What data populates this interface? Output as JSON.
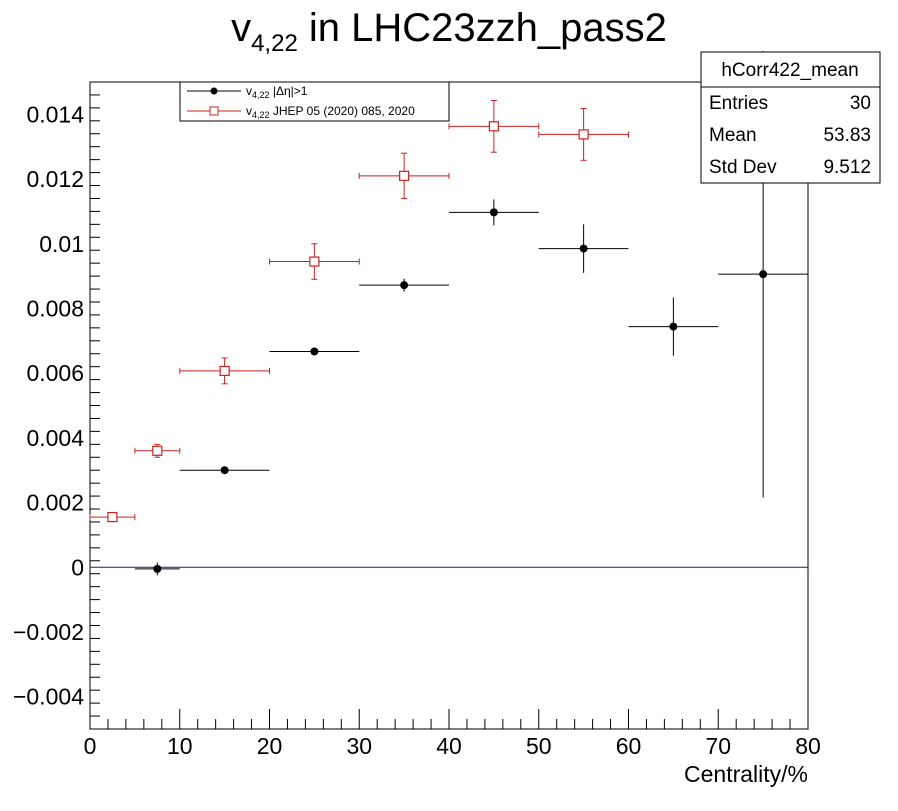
{
  "chart_data": {
    "type": "scatter",
    "title": {
      "symbol": "v",
      "subscript": "4,22",
      "rest": " in LHC23zzh_pass2"
    },
    "xlabel": "Centrality/%",
    "ylabel": "",
    "xlim": [
      0,
      80
    ],
    "ylim": [
      -0.005,
      0.015
    ],
    "x_ticks": [
      "0",
      "10",
      "20",
      "30",
      "40",
      "50",
      "60",
      "70",
      "80"
    ],
    "y_ticks": [
      "−0.004",
      "−0.002",
      "0",
      "0.002",
      "0.004",
      "0.006",
      "0.008",
      "0.01",
      "0.012",
      "0.014"
    ],
    "y_tick_values": [
      -0.004,
      -0.002,
      0,
      0.002,
      0.004,
      0.006,
      0.008,
      0.01,
      0.012,
      0.014
    ],
    "grid": false,
    "zero_line": true,
    "legend": {
      "placement": "top-left",
      "entries": [
        {
          "symbol": "v",
          "subscript": "4,22",
          "rest": " |Δη|>1"
        },
        {
          "symbol": "v",
          "subscript": "4,22",
          "rest": " JHEP 05 (2020) 085, 2020"
        }
      ]
    },
    "stats_box": {
      "name": "hCorr422_mean",
      "rows": [
        {
          "label": "Entries",
          "value": "30"
        },
        {
          "label": "Mean",
          "value": "53.83"
        },
        {
          "label": "Std Dev",
          "value": "9.512"
        }
      ]
    },
    "series": [
      {
        "color": "#000000",
        "marker": "filled-circle",
        "points": [
          {
            "x": 7.5,
            "y": -5e-05,
            "xerr": 2.5,
            "yerr": 0.0002
          },
          {
            "x": 15,
            "y": 0.003,
            "xerr": 5,
            "yerr": 5e-05
          },
          {
            "x": 25,
            "y": 0.00667,
            "xerr": 5,
            "yerr": 0.0001
          },
          {
            "x": 35,
            "y": 0.00872,
            "xerr": 5,
            "yerr": 0.0002
          },
          {
            "x": 45,
            "y": 0.01097,
            "xerr": 5,
            "yerr": 0.0004
          },
          {
            "x": 55,
            "y": 0.00985,
            "xerr": 5,
            "yerr": 0.00075
          },
          {
            "x": 65,
            "y": 0.00744,
            "xerr": 5,
            "yerr": 0.0009
          },
          {
            "x": 75,
            "y": 0.00906,
            "xerr": 5,
            "yerr": 0.0069
          }
        ]
      },
      {
        "color": "#cc2222",
        "marker": "open-square",
        "points": [
          {
            "x": 2.5,
            "y": 0.00155,
            "xerr": 2.5,
            "yerr": 0.0001
          },
          {
            "x": 7.5,
            "y": 0.0036,
            "xerr": 2.5,
            "yerr": 0.0002
          },
          {
            "x": 15,
            "y": 0.00607,
            "xerr": 5,
            "yerr": 0.0004
          },
          {
            "x": 25,
            "y": 0.00945,
            "xerr": 5,
            "yerr": 0.00055
          },
          {
            "x": 35,
            "y": 0.0121,
            "xerr": 5,
            "yerr": 0.0007
          },
          {
            "x": 45,
            "y": 0.01363,
            "xerr": 5,
            "yerr": 0.0008
          },
          {
            "x": 55,
            "y": 0.01338,
            "xerr": 5,
            "yerr": 0.0008
          }
        ]
      }
    ]
  }
}
